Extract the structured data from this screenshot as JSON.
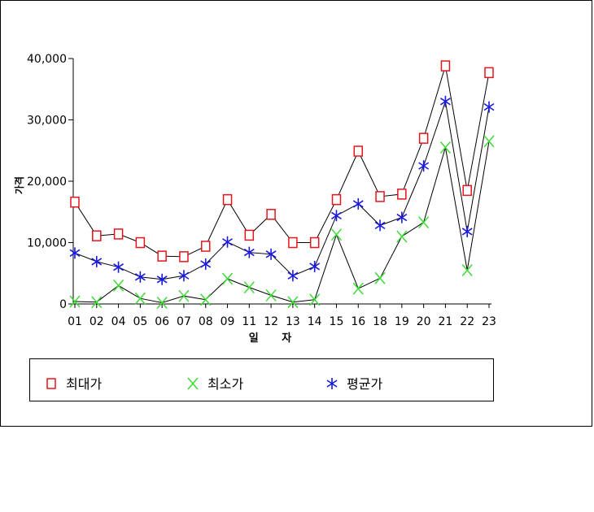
{
  "chart_data": {
    "type": "line",
    "categories": [
      "01",
      "02",
      "04",
      "05",
      "06",
      "07",
      "08",
      "09",
      "11",
      "12",
      "13",
      "14",
      "15",
      "16",
      "18",
      "19",
      "20",
      "21",
      "22",
      "23"
    ],
    "xlabel": "일 자",
    "ylabel": "가격",
    "ylim": [
      0,
      40000
    ],
    "yticks": [
      0,
      10000,
      20000,
      30000,
      40000
    ],
    "ytick_labels": [
      "0",
      "10,000",
      "20,000",
      "30,000",
      "40,000"
    ],
    "grid": false,
    "legend_position": "bottom",
    "series": [
      {
        "name": "최대가",
        "marker": "square",
        "color": "#e8141b",
        "values": [
          16600,
          11100,
          11400,
          10000,
          7800,
          7700,
          9400,
          17000,
          11200,
          14600,
          10000,
          10000,
          17000,
          24900,
          17500,
          17900,
          27000,
          38800,
          18500,
          37700
        ]
      },
      {
        "name": "최소가",
        "marker": "x",
        "color": "#3ddb35",
        "values": [
          400,
          300,
          3000,
          900,
          200,
          1300,
          700,
          4100,
          2700,
          1400,
          300,
          700,
          11300,
          2500,
          4200,
          11000,
          13300,
          25500,
          5500,
          26500
        ]
      },
      {
        "name": "평균가",
        "marker": "asterisk",
        "color": "#1a1ae0",
        "values": [
          8300,
          6900,
          6000,
          4400,
          4000,
          4600,
          6500,
          10100,
          8400,
          8100,
          4600,
          6100,
          14400,
          16300,
          12800,
          14100,
          22500,
          33000,
          11800,
          32100
        ]
      }
    ]
  }
}
